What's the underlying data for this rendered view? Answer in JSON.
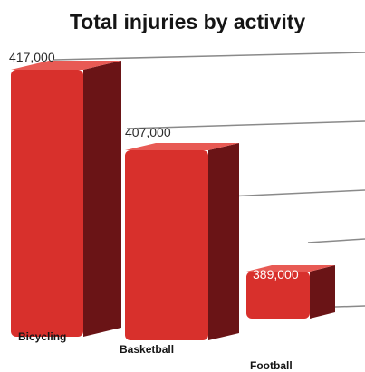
{
  "chart_data": {
    "type": "bar",
    "title": "Total injuries by activity",
    "categories": [
      "Bicycling",
      "Basketball",
      "Football"
    ],
    "values": [
      417000,
      407000,
      389000
    ],
    "value_labels": [
      "417,000",
      "407,000",
      "389,000"
    ],
    "grid": true,
    "colors": {
      "bar_front": "#d8302c",
      "bar_side": "#6a1416",
      "bar_top": "#e85a54",
      "gridline": "#8a8a8a"
    }
  }
}
